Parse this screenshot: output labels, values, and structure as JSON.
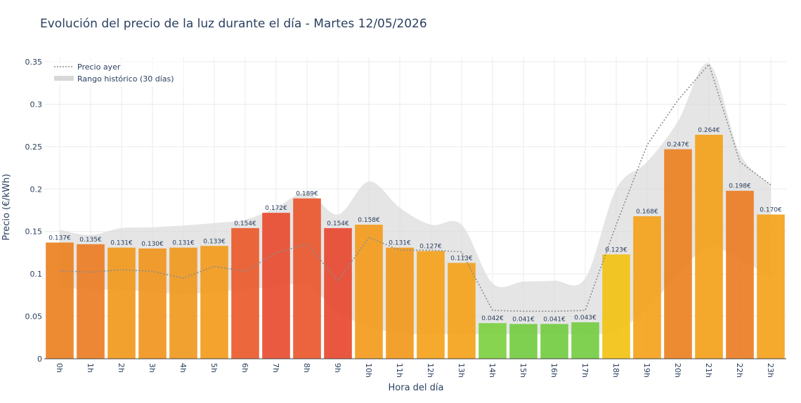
{
  "chart_data": {
    "type": "bar",
    "title": "Evolución del precio de la luz durante el día - Martes 12/05/2026",
    "xlabel": "Hora del día",
    "ylabel": "Precio (€/kWh)",
    "ylim": [
      0,
      0.355
    ],
    "yticks": [
      0,
      0.05,
      0.1,
      0.15,
      0.2,
      0.25,
      0.3,
      0.35
    ],
    "ytick_labels": [
      "0",
      "0.05",
      "0.1",
      "0.15",
      "0.2",
      "0.25",
      "0.3",
      "0.35"
    ],
    "grid": true,
    "legend_position": "top-left",
    "categories": [
      "0h",
      "1h",
      "2h",
      "3h",
      "4h",
      "5h",
      "6h",
      "7h",
      "8h",
      "9h",
      "10h",
      "11h",
      "12h",
      "13h",
      "14h",
      "15h",
      "16h",
      "17h",
      "18h",
      "19h",
      "20h",
      "21h",
      "22h",
      "23h"
    ],
    "series": [
      {
        "values": [
          0.137,
          0.135,
          0.131,
          0.13,
          0.131,
          0.133,
          0.154,
          0.172,
          0.189,
          0.154,
          0.158,
          0.131,
          0.127,
          0.113,
          0.042,
          0.041,
          0.041,
          0.043,
          0.123,
          0.168,
          0.247,
          0.264,
          0.198,
          0.17
        ],
        "labels": [
          "0.137€",
          "0.135€",
          "0.131€",
          "0.130€",
          "0.131€",
          "0.133€",
          "0.154€",
          "0.172€",
          "0.189€",
          "0.154€",
          "0.158€",
          "0.131€",
          "0.127€",
          "0.113€",
          "0.042€",
          "0.041€",
          "0.041€",
          "0.043€",
          "0.123€",
          "0.168€",
          "0.247€",
          "0.264€",
          "0.198€",
          "0.170€"
        ],
        "colors": [
          "#ec8224",
          "#ec7e26",
          "#f29a1e",
          "#f1961f",
          "#f09a1f",
          "#f29c1e",
          "#ec5b2e",
          "#e84d31",
          "#e9582f",
          "#e84a31",
          "#f39d1e",
          "#f29a1e",
          "#f4a21d",
          "#f4a21d",
          "#7ed143",
          "#75cc44",
          "#74cc44",
          "#76cc44",
          "#f2c316",
          "#f4a21d",
          "#ec8224",
          "#f3a21d",
          "#ec7e26",
          "#f4a21d"
        ]
      },
      {
        "name": "Precio ayer",
        "style": "dotted-line",
        "values": [
          0.104,
          0.102,
          0.105,
          0.103,
          0.095,
          0.109,
          0.103,
          0.125,
          0.135,
          0.092,
          0.143,
          0.128,
          0.128,
          0.126,
          0.057,
          0.056,
          0.056,
          0.057,
          0.158,
          0.252,
          0.305,
          0.347,
          0.232,
          0.205
        ]
      },
      {
        "name": "Rango histórico (30 días)",
        "style": "band",
        "lower": [
          0.083,
          0.082,
          0.081,
          0.079,
          0.076,
          0.079,
          0.082,
          0.085,
          0.087,
          0.055,
          0.038,
          0.03,
          0.029,
          0.029,
          0.029,
          0.029,
          0.029,
          0.029,
          0.033,
          0.059,
          0.1,
          0.132,
          0.117,
          0.097
        ],
        "upper": [
          0.152,
          0.146,
          0.154,
          0.155,
          0.157,
          0.16,
          0.164,
          0.178,
          0.196,
          0.17,
          0.209,
          0.178,
          0.158,
          0.158,
          0.089,
          0.091,
          0.092,
          0.095,
          0.2,
          0.232,
          0.28,
          0.348,
          0.242,
          0.205
        ]
      }
    ]
  },
  "colors": {
    "band": "#d7d7d7",
    "prev_line": "#8c8c8c",
    "grid": "#ebebeb",
    "text": "#2a3f5f"
  }
}
